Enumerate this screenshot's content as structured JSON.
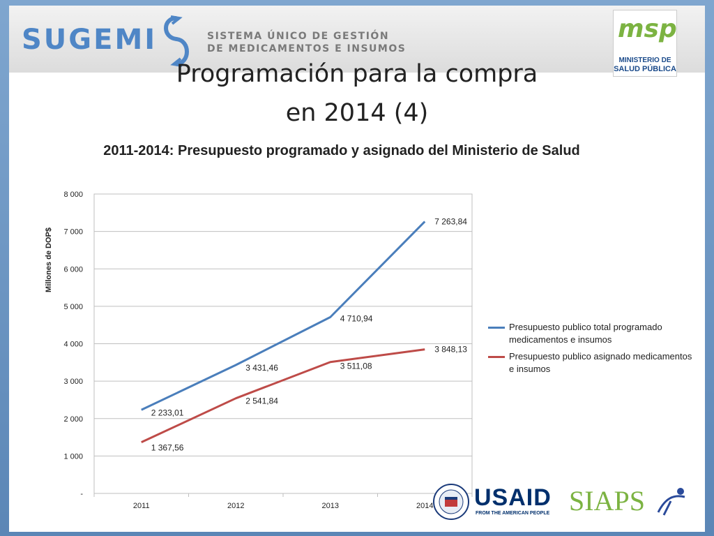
{
  "header": {
    "logo_name": "SUGEMI",
    "logo_subtitle_line1": "SISTEMA ÚNICO DE GESTIÓN",
    "logo_subtitle_line2": "DE MEDICAMENTOS E INSUMOS",
    "msp_logo_text": "msp",
    "msp_caption_line1": "MINISTERIO DE",
    "msp_caption_line2": "SALUD PÚBLICA"
  },
  "slide": {
    "title_line1": "Programación para la compra",
    "title_line2": "en 2014 (4)"
  },
  "footer": {
    "usaid_text": "USAID",
    "usaid_tagline": "FROM THE AMERICAN PEOPLE",
    "siaps_text": "SIAPS"
  },
  "colors": {
    "series1": "#4a7ebb",
    "series2": "#be4b48"
  },
  "chart_data": {
    "type": "line",
    "title": "2011-2014: Presupuesto programado y asignado del Ministerio de Salud",
    "ylabel": "Millones de DOP$",
    "xlabel": "",
    "categories": [
      "2011",
      "2012",
      "2013",
      "2014"
    ],
    "ylim": [
      0,
      8000
    ],
    "yticks": [
      0,
      1000,
      2000,
      3000,
      4000,
      5000,
      6000,
      7000,
      8000
    ],
    "ytick_labels": [
      "-",
      "1 000",
      "2 000",
      "3 000",
      "4 000",
      "5 000",
      "6 000",
      "7 000",
      "8 000"
    ],
    "grid": true,
    "legend_position": "right",
    "series": [
      {
        "name": "Presupuesto publico total programado medicamentos e insumos",
        "values": [
          2233.01,
          3431.46,
          4710.94,
          7263.84
        ],
        "labels": [
          "2 233,01",
          "3 431,46",
          "4 710,94",
          "7 263,84"
        ]
      },
      {
        "name": "Presupuesto publico asignado medicamentos e insumos",
        "values": [
          1367.56,
          2541.84,
          3511.08,
          3848.13
        ],
        "labels": [
          "1 367,56",
          "2 541,84",
          "3 511,08",
          "3 848,13"
        ]
      }
    ]
  }
}
